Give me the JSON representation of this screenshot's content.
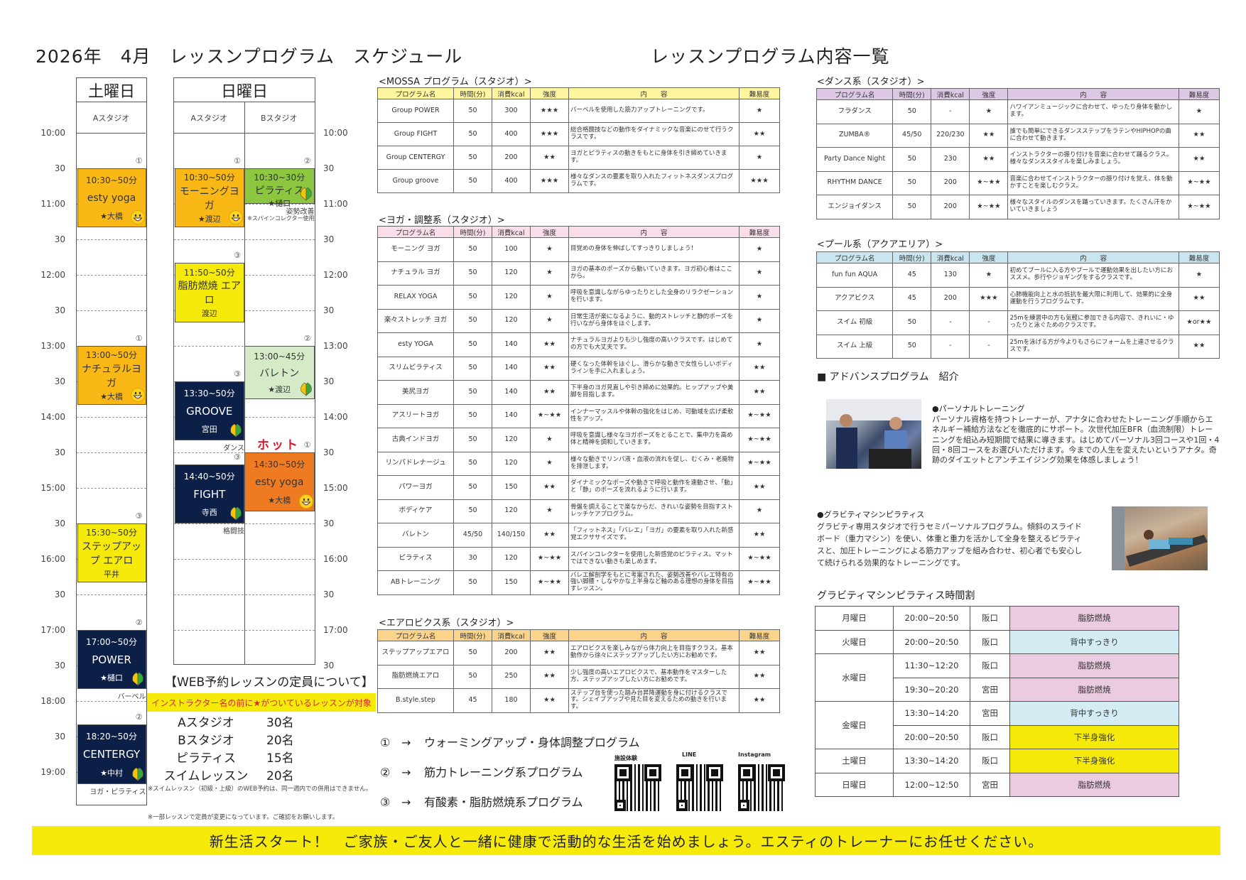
{
  "titles": {
    "schedule": "2026年　4月　レッスンプログラム　スケジュール",
    "program_list": "レッスンプログラム内容一覧"
  },
  "colors": {
    "orange": "#F9B815",
    "hot_orange": "#EE7B22",
    "yellow": "#F5EA0A",
    "navy": "#0C1F47",
    "green": "#8DC63F",
    "light_green": "#D5EBC8",
    "hot_red": "#D5182A"
  },
  "schedule": {
    "time_labels_left": [
      "10:00",
      "30",
      "11:00",
      "30",
      "12:00",
      "30",
      "13:00",
      "30",
      "14:00",
      "30",
      "15:00",
      "30",
      "16:00",
      "30",
      "17:00",
      "30",
      "18:00",
      "30",
      "19:00"
    ],
    "time_labels_right": [
      "10:00",
      "30",
      "11:00",
      "30",
      "12:00",
      "30",
      "13:00",
      "30",
      "14:00",
      "30",
      "15:00",
      "30",
      "16:00",
      "30",
      "17:00",
      "30"
    ],
    "saturday": {
      "day": "土曜日",
      "studios": [
        "Aスタジオ"
      ],
      "lessons": [
        {
          "col": 0,
          "time": "10:30~50分",
          "name": "esty yoga",
          "instructor": "★大橋",
          "category": "①",
          "color": "#F9B815",
          "icon": "smiley-icon",
          "notes": []
        },
        {
          "col": 0,
          "time": "13:00~50分",
          "name": "ナチュラルヨガ",
          "instructor": "★大橋",
          "category": "①",
          "color": "#F9B815",
          "icon": "smiley-icon",
          "notes": []
        },
        {
          "col": 0,
          "time": "15:30~50分",
          "name": "ステップアップ エアロ",
          "instructor": "平井",
          "category": "③",
          "color": "#F5EA0A",
          "icon": "",
          "notes": []
        },
        {
          "col": 0,
          "time": "17:00~50分",
          "name": "POWER",
          "instructor": "★樋口",
          "category": "②",
          "color": "#0C1F47",
          "icon": "beginner-mark-icon",
          "notes": [
            "バーベル"
          ]
        },
        {
          "col": 0,
          "time": "18:20~50分",
          "name": "CENTERGY",
          "instructor": "★中村",
          "category": "②",
          "color": "#0C1F47",
          "icon": "beginner-mark-icon",
          "notes": [
            "ヨガ・ピラティス"
          ]
        }
      ]
    },
    "sunday": {
      "day": "日曜日",
      "studios": [
        "Aスタジオ",
        "Bスタジオ"
      ],
      "lessons": [
        {
          "col": 0,
          "time": "10:30~50分",
          "name": "モーニングヨガ",
          "instructor": "★渡辺",
          "category": "①",
          "color": "#F9B815",
          "icon": "smiley-icon",
          "notes": []
        },
        {
          "col": 0,
          "time": "11:50~50分",
          "name": "脂肪燃焼 エアロ",
          "instructor": "渡辺",
          "category": "③",
          "color": "#F5EA0A",
          "icon": "",
          "notes": []
        },
        {
          "col": 0,
          "time": "13:30~50分",
          "name": "GROOVE",
          "instructor": "宮田",
          "category": "③",
          "color": "#0C1F47",
          "icon": "beginner-mark-icon",
          "notes": [
            "ダンス"
          ]
        },
        {
          "col": 0,
          "time": "14:40~50分",
          "name": "FIGHT",
          "instructor": "寺西",
          "category": "③",
          "color": "#0C1F47",
          "icon": "beginner-mark-icon",
          "notes": [
            "格闘技"
          ]
        },
        {
          "col": 1,
          "time": "10:30~30分",
          "name": "ピラティス",
          "instructor": "★樋口",
          "category": "②",
          "color": "#8DC63F",
          "icon": "beginner-mark-icon",
          "notes": [
            "姿勢改善",
            "※スパインコレクター使用"
          ]
        },
        {
          "col": 1,
          "time": "13:00~45分",
          "name": "バレトン",
          "instructor": "★渡辺",
          "category": "②",
          "color": "#D5EBC8",
          "icon": "beginner-mark-icon",
          "notes": []
        },
        {
          "col": 1,
          "time": "14:30~50分",
          "name": "esty yoga",
          "instructor": "★大橋",
          "category": "①",
          "color": "#EE7B22",
          "icon": "smiley-icon",
          "notes": [],
          "above": "ホット"
        }
      ]
    }
  },
  "web_reservation": {
    "heading": "【WEB予約レッスンの定員について】",
    "highlight": "インストラクター名の前に★がついているレッスンが対象",
    "capacities": [
      {
        "studio": "Aスタジオ",
        "count": "30名"
      },
      {
        "studio": "Bスタジオ",
        "count": "20名"
      },
      {
        "studio": "ピラティス",
        "count": "15名"
      },
      {
        "studio": "スイムレッスン",
        "count": "20名"
      }
    ],
    "note1": "※スイムレッスン（初級・上級）のWEB予約は、同一週内での併用はできません。",
    "note2": "※一部レッスンで定員が変更になっています。ご確認をお願いします。"
  },
  "table_headers": [
    "プログラム名",
    "時間(分)",
    "消費kcal",
    "強度",
    "内　　容",
    "難易度"
  ],
  "tables": {
    "mossa": {
      "title": "<MOSSA プログラム（スタジオ）>",
      "header_color": "#FFF6A0",
      "rows": [
        [
          "Group POWER",
          "50",
          "300",
          "★★★",
          "バーベルを使用した筋力アップトレーニングです。",
          "★"
        ],
        [
          "Group FIGHT",
          "50",
          "400",
          "★★★",
          "総合格闘技などの動作をダイナミックな音楽にのせて行うクラスです。",
          "★★"
        ],
        [
          "Group CENTERGY",
          "50",
          "200",
          "★★",
          "ヨガとピラティスの動きをもとに身体を引き締めていきます。",
          "★"
        ],
        [
          "Group groove",
          "50",
          "400",
          "★★★",
          "様々なダンスの要素を取り入れたフィットネスダンスプログラムです。",
          "★★★"
        ]
      ]
    },
    "yoga": {
      "title": "<ヨガ・調整系（スタジオ）>",
      "header_color": "#F9DDEB",
      "rows": [
        [
          "モーニング ヨガ",
          "50",
          "100",
          "★",
          "目覚めの身体を伸ばしてすっきりしましょう！",
          "★"
        ],
        [
          "ナチュラル ヨガ",
          "50",
          "120",
          "★",
          "ヨガの基本のポーズから動いていきます。ヨガ初心者はここから。",
          "★"
        ],
        [
          "RELAX YOGA",
          "50",
          "120",
          "★",
          "呼吸を意識しながらゆったりとした全身のリラクゼーションを行います。",
          "★"
        ],
        [
          "楽々ストレッチ ヨガ",
          "50",
          "120",
          "★",
          "日常生活が楽になるように、動的ストレッチと静的ポーズを行いながら身体をほぐします。",
          "★"
        ],
        [
          "esty YOGA",
          "50",
          "140",
          "★★",
          "ナチュラルヨガよりも少し強度の高いクラスです。はじめての方でも大丈夫です。",
          "★"
        ],
        [
          "スリムピラティス",
          "50",
          "140",
          "★★",
          "硬くなった体幹をほぐし、滑らかな動きで女性らしいボディラインを手に入れましょう。",
          "★★"
        ],
        [
          "美尻ヨガ",
          "50",
          "140",
          "★★",
          "下半身のヨガ見直しや引き締めに効果的。ヒップアップや美脚を目指します。",
          "★★"
        ],
        [
          "アスリートヨガ",
          "50",
          "140",
          "★~★★",
          "インナーマッスルや体幹の強化をはじめ、可動域を広げ柔軟性をアップ。",
          "★~★★"
        ],
        [
          "古典インドヨガ",
          "50",
          "120",
          "★",
          "呼吸を意識し様々なヨガポーズをとることで、集中力を高め体と精神を調和していきます。",
          "★~★★"
        ],
        [
          "リンパドレナージュ",
          "50",
          "120",
          "★",
          "様々な動きでリンパ液・血液の流れを促し、むくみ・老廃物を排泄します。",
          "★~★★"
        ],
        [
          "パワーヨガ",
          "50",
          "150",
          "★★",
          "ダイナミックなポーズや動きで呼吸と動作を連動させ、「動」と「静」のポーズを流れるように行います。",
          "★★"
        ],
        [
          "ボディケア",
          "50",
          "120",
          "★",
          "骨盤を調えることで楽なからだ、きれいな姿勢を目指すストレッチケアプログラム。",
          "★"
        ],
        [
          "バレトン",
          "45/50",
          "140/150",
          "★★",
          "「フィットネス」「バレエ」「ヨガ」の要素を取り入れた新感覚エクササイズです。",
          "★★"
        ],
        [
          "ピラティス",
          "30",
          "120",
          "★~★★",
          "スパインコレクターを使用した新感覚のピラティス。マットではできない動きも楽しめます。",
          "★~★★"
        ],
        [
          "ABトレーニング",
          "50",
          "150",
          "★~★★",
          "バレエ解剖学をもとに考案された、姿勢改善やバレエ特有の強い脚腰・しなやかな上半身など軸のある理想の身体を目指すレッスン。",
          "★~★★"
        ]
      ]
    },
    "aerobics": {
      "title": "<エアロビクス系（スタジオ）>",
      "header_color": "#FBD38A",
      "rows": [
        [
          "ステップアップエアロ",
          "50",
          "200",
          "★★",
          "エアロビクスを楽しみながら体力向上を目指すクラス。基本動作から徐々にステップアップしたい方にお勧めです。",
          "★★"
        ],
        [
          "脂肪燃焼エアロ",
          "50",
          "250",
          "★★",
          "少し強度の高いエアロビクスで、基本動作をマスターした方、ステップアップしたい方にお勧めです。",
          "★★"
        ],
        [
          "B.style.step",
          "45",
          "180",
          "★★",
          "ステップ台を使った踏み台昇降運動を身に付けるクラスです。シェイプアップや見た目を変えるための動きを行います。",
          "★★"
        ]
      ]
    },
    "dance": {
      "title": "<ダンス系（スタジオ）>",
      "header_color": "#DCC8E4",
      "rows": [
        [
          "フラダンス",
          "50",
          "-",
          "★",
          "ハワイアンミュージックに合わせて、ゆったり身体を動かします。",
          "★"
        ],
        [
          "ZUMBA®",
          "45/50",
          "220/230",
          "★★",
          "誰でも簡単にできるダンスステップをラテンやHIPHOPの曲に合わせて動きます。",
          "★★"
        ],
        [
          "Party Dance Night",
          "50",
          "230",
          "★★",
          "インストラクターの振り付けを音楽に合わせて踊るクラス。様々なダンススタイルを楽しみましょう。",
          "★★"
        ],
        [
          "RHYTHM DANCE",
          "50",
          "200",
          "★~★★",
          "音楽に合わせてインストラクターの振り付けを覚え、体を動かすことを楽しむクラス。",
          "★~★★"
        ],
        [
          "エンジョイダンス",
          "50",
          "200",
          "★~★★",
          "様々なスタイルのダンスを踊っていきます。たくさん汗をかいていきましょう",
          "★~★★"
        ]
      ]
    },
    "pool": {
      "title": "<プール系（アクアエリア）>",
      "header_color": "#C9E6F0",
      "rows": [
        [
          "fun fun AQUA",
          "45",
          "130",
          "★",
          "初めてプールに入る方やプールで運動効果を出したい方におススメ。歩行やジョギングをするクラスです。",
          "★"
        ],
        [
          "アクアビクス",
          "45",
          "200",
          "★★★",
          "心肺機能向上と水の抵抗を最大限に利用して、効果的に全身運動を行うプログラムです。",
          "★★"
        ],
        [
          "スイム 初級",
          "50",
          "-",
          "-",
          "25mを練習中の方も気軽に参加できる内容で、きれいに・ゆったりと泳ぐためのクラスです。",
          "★or★★"
        ],
        [
          "スイム 上級",
          "50",
          "-",
          "-",
          "25mを泳げる方が今よりもさらにフォームを上達させるクラスです。",
          "★★"
        ]
      ]
    }
  },
  "legend": [
    {
      "mark": "①",
      "arrow": "→",
      "label": "ウォーミングアップ・身体調整プログラム"
    },
    {
      "mark": "②",
      "arrow": "→",
      "label": "筋力トレーニング系プログラム"
    },
    {
      "mark": "③",
      "arrow": "→",
      "label": "有酸素・脂肪燃焼系プログラム"
    }
  ],
  "qr_codes": [
    {
      "label": "施設体験"
    },
    {
      "label": "LINE"
    },
    {
      "label": "Instagram"
    }
  ],
  "advance": {
    "heading": "■ アドバンスプログラム　紹介",
    "personal": {
      "title": "●パーソナルトレーニング",
      "body": "パーソナル資格を持つトレーナーが、アナタに合わせたトレーニング手順からエネルギー補給方法などを徹底的にサポート。次世代加圧BFR（血流制限）トレーニングを組込み短期間で結果に導きます。はじめてパーソナル3回コースや1回・4回・8回コースをお選びいただけます。今までの人生を変えたいというアナタ。奇跡のダイエットとアンチエイジング効果を体感しましょう！"
    },
    "gravity": {
      "title": "●グラビティマシンピラティス",
      "body": "グラビティ専用スタジオで行うセミパーソナルプログラム。傾斜のスライドボード（重力マシン）を使い、体重と重力を活かして全身を整えるピラティスと、加圧トレーニングによる筋力アップを組み合わせ、初心者でも安心して続けられる効果的なトレーニングです。"
    }
  },
  "gravity_timetable": {
    "title": "グラビティマシンピラティス時間割",
    "days": [
      {
        "day": "月曜日",
        "slots": [
          {
            "time": "20:00~20:50",
            "instructor": "阪口",
            "program": "脂肪燃焼",
            "color": "#EBCBE0"
          }
        ]
      },
      {
        "day": "火曜日",
        "slots": [
          {
            "time": "20:00~20:50",
            "instructor": "阪口",
            "program": "背中すっきり",
            "color": "#D4ECF3"
          }
        ]
      },
      {
        "day": "水曜日",
        "slots": [
          {
            "time": "11:30~12:20",
            "instructor": "阪口",
            "program": "脂肪燃焼",
            "color": "#EBCBE0"
          },
          {
            "time": "19:30~20:20",
            "instructor": "宮田",
            "program": "脂肪燃焼",
            "color": "#EBCBE0"
          }
        ]
      },
      {
        "day": "金曜日",
        "slots": [
          {
            "time": "13:30~14:20",
            "instructor": "宮田",
            "program": "背中すっきり",
            "color": "#D4ECF3"
          },
          {
            "time": "20:00~20:50",
            "instructor": "阪口",
            "program": "下半身強化",
            "color": "#F5EA0A"
          }
        ]
      },
      {
        "day": "土曜日",
        "slots": [
          {
            "time": "13:30~14:20",
            "instructor": "阪口",
            "program": "下半身強化",
            "color": "#F5EA0A"
          }
        ]
      },
      {
        "day": "日曜日",
        "slots": [
          {
            "time": "12:00~12:50",
            "instructor": "宮田",
            "program": "脂肪燃焼",
            "color": "#EBCBE0"
          }
        ]
      }
    ]
  },
  "banner": "新生活スタート！　ご家族・ご友人と一緒に健康で活動的な生活を始めましょう。エスティのトレーナーにお任せください。"
}
